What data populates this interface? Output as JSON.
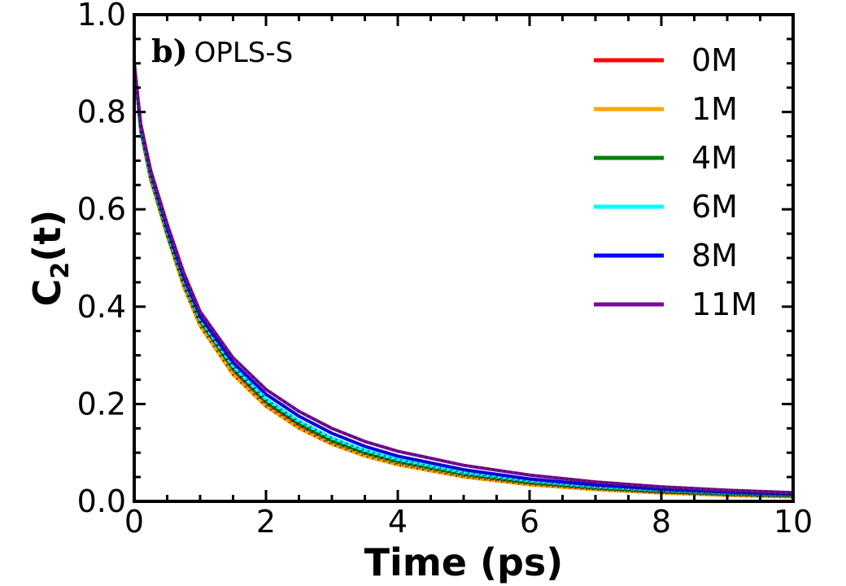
{
  "chart_data": {
    "type": "line",
    "panel_label": "b)",
    "title": "OPLS-S",
    "xlabel": "Time (ps)",
    "ylabel_main": "C",
    "ylabel_sub": "2",
    "ylabel_tail": "(t)",
    "xlim": [
      0,
      10
    ],
    "ylim": [
      0,
      1.0
    ],
    "xticks": [
      0,
      2,
      4,
      6,
      8,
      10
    ],
    "xtick_labels": [
      "0",
      "2",
      "4",
      "6",
      "8",
      "10"
    ],
    "yticks": [
      0.0,
      0.2,
      0.4,
      0.6,
      0.8,
      1.0
    ],
    "ytick_labels": [
      "0.0",
      "0.2",
      "0.4",
      "0.6",
      "0.8",
      "1.0"
    ],
    "grid": false,
    "legend_position": "top-right",
    "x": [
      0,
      0.1,
      0.25,
      0.5,
      0.75,
      1,
      1.5,
      2,
      2.5,
      3,
      3.5,
      4,
      5,
      6,
      7,
      8,
      9,
      10
    ],
    "series": [
      {
        "name": "0M",
        "color": "#ff0000",
        "values": [
          0.9,
          0.76,
          0.66,
          0.55,
          0.45,
          0.37,
          0.27,
          0.2,
          0.155,
          0.12,
          0.097,
          0.078,
          0.052,
          0.036,
          0.025,
          0.018,
          0.013,
          0.01
        ]
      },
      {
        "name": "1M",
        "color": "#ffa500",
        "values": [
          0.9,
          0.76,
          0.66,
          0.545,
          0.44,
          0.36,
          0.26,
          0.195,
          0.15,
          0.117,
          0.093,
          0.075,
          0.05,
          0.034,
          0.024,
          0.017,
          0.012,
          0.009
        ]
      },
      {
        "name": "4M",
        "color": "#008000",
        "values": [
          0.9,
          0.76,
          0.665,
          0.55,
          0.45,
          0.37,
          0.272,
          0.205,
          0.16,
          0.125,
          0.1,
          0.082,
          0.056,
          0.039,
          0.028,
          0.02,
          0.015,
          0.011
        ]
      },
      {
        "name": "6M",
        "color": "#00ffff",
        "values": [
          0.9,
          0.765,
          0.67,
          0.555,
          0.455,
          0.375,
          0.278,
          0.21,
          0.165,
          0.13,
          0.105,
          0.086,
          0.059,
          0.042,
          0.03,
          0.022,
          0.016,
          0.012
        ]
      },
      {
        "name": "8M",
        "color": "#0000ff",
        "values": [
          0.9,
          0.77,
          0.675,
          0.56,
          0.46,
          0.38,
          0.285,
          0.22,
          0.175,
          0.14,
          0.113,
          0.093,
          0.065,
          0.046,
          0.034,
          0.025,
          0.019,
          0.015
        ]
      },
      {
        "name": "11M",
        "color": "#7b0a9e",
        "values": [
          0.9,
          0.775,
          0.68,
          0.57,
          0.47,
          0.39,
          0.295,
          0.23,
          0.185,
          0.15,
          0.123,
          0.103,
          0.074,
          0.054,
          0.04,
          0.03,
          0.023,
          0.018
        ]
      }
    ]
  }
}
